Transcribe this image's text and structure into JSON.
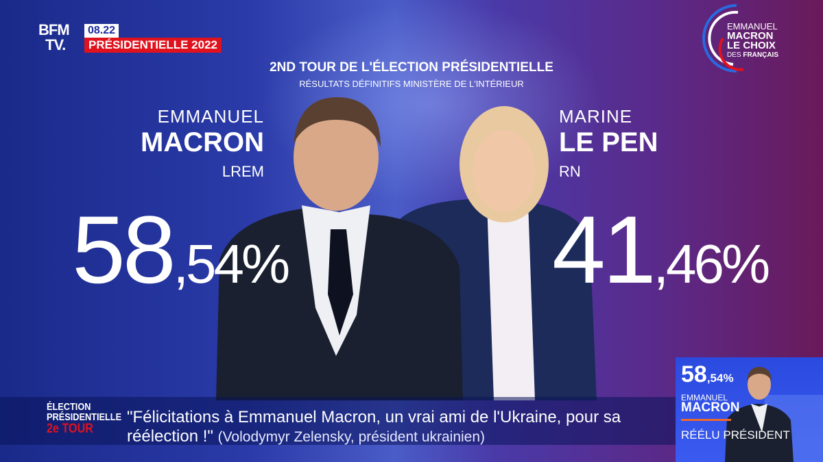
{
  "header": {
    "logo": "BFM TV.",
    "logo_line1": "BFM",
    "logo_line2": "TV.",
    "time": "08.22",
    "show": "PRÉSIDENTIELLE 2022"
  },
  "title": "2ND TOUR DE L'ÉLECTION PRÉSIDENTIELLE",
  "subtitle": "Résultats définitifs Ministère de l'Intérieur",
  "candidates": [
    {
      "first_name": "EMMANUEL",
      "last_name": "MACRON",
      "party": "LREM",
      "score_int": "58",
      "score_dec": ",54%"
    },
    {
      "first_name": "MARINE",
      "last_name": "LE PEN",
      "party": "RN",
      "score_int": "41",
      "score_dec": ",46%"
    }
  ],
  "corner": {
    "line1": "EMMANUEL",
    "line2": "MACRON",
    "line3": "LE CHOIX",
    "line4a": "DES",
    "line4b": "FRANÇAIS"
  },
  "ticker": {
    "label1": "ÉLECTION",
    "label2": "PRÉSIDENTIELLE",
    "label3": "2e TOUR",
    "quote": "\"Félicitations à Emmanuel Macron, un vrai ami de l'Ukraine, pour sa réélection !\"",
    "source": "(Volodymyr Zelensky, président ukrainien)"
  },
  "inset": {
    "score_int": "58",
    "score_dec": ",54%",
    "first_name": "EMMANUEL",
    "last_name": "MACRON",
    "status": "RÉÉLU PRÉSIDENT"
  },
  "colors": {
    "accent_red": "#e0121e",
    "brand_blue": "#1a2a9a",
    "orange_rule": "#f06a2a"
  }
}
